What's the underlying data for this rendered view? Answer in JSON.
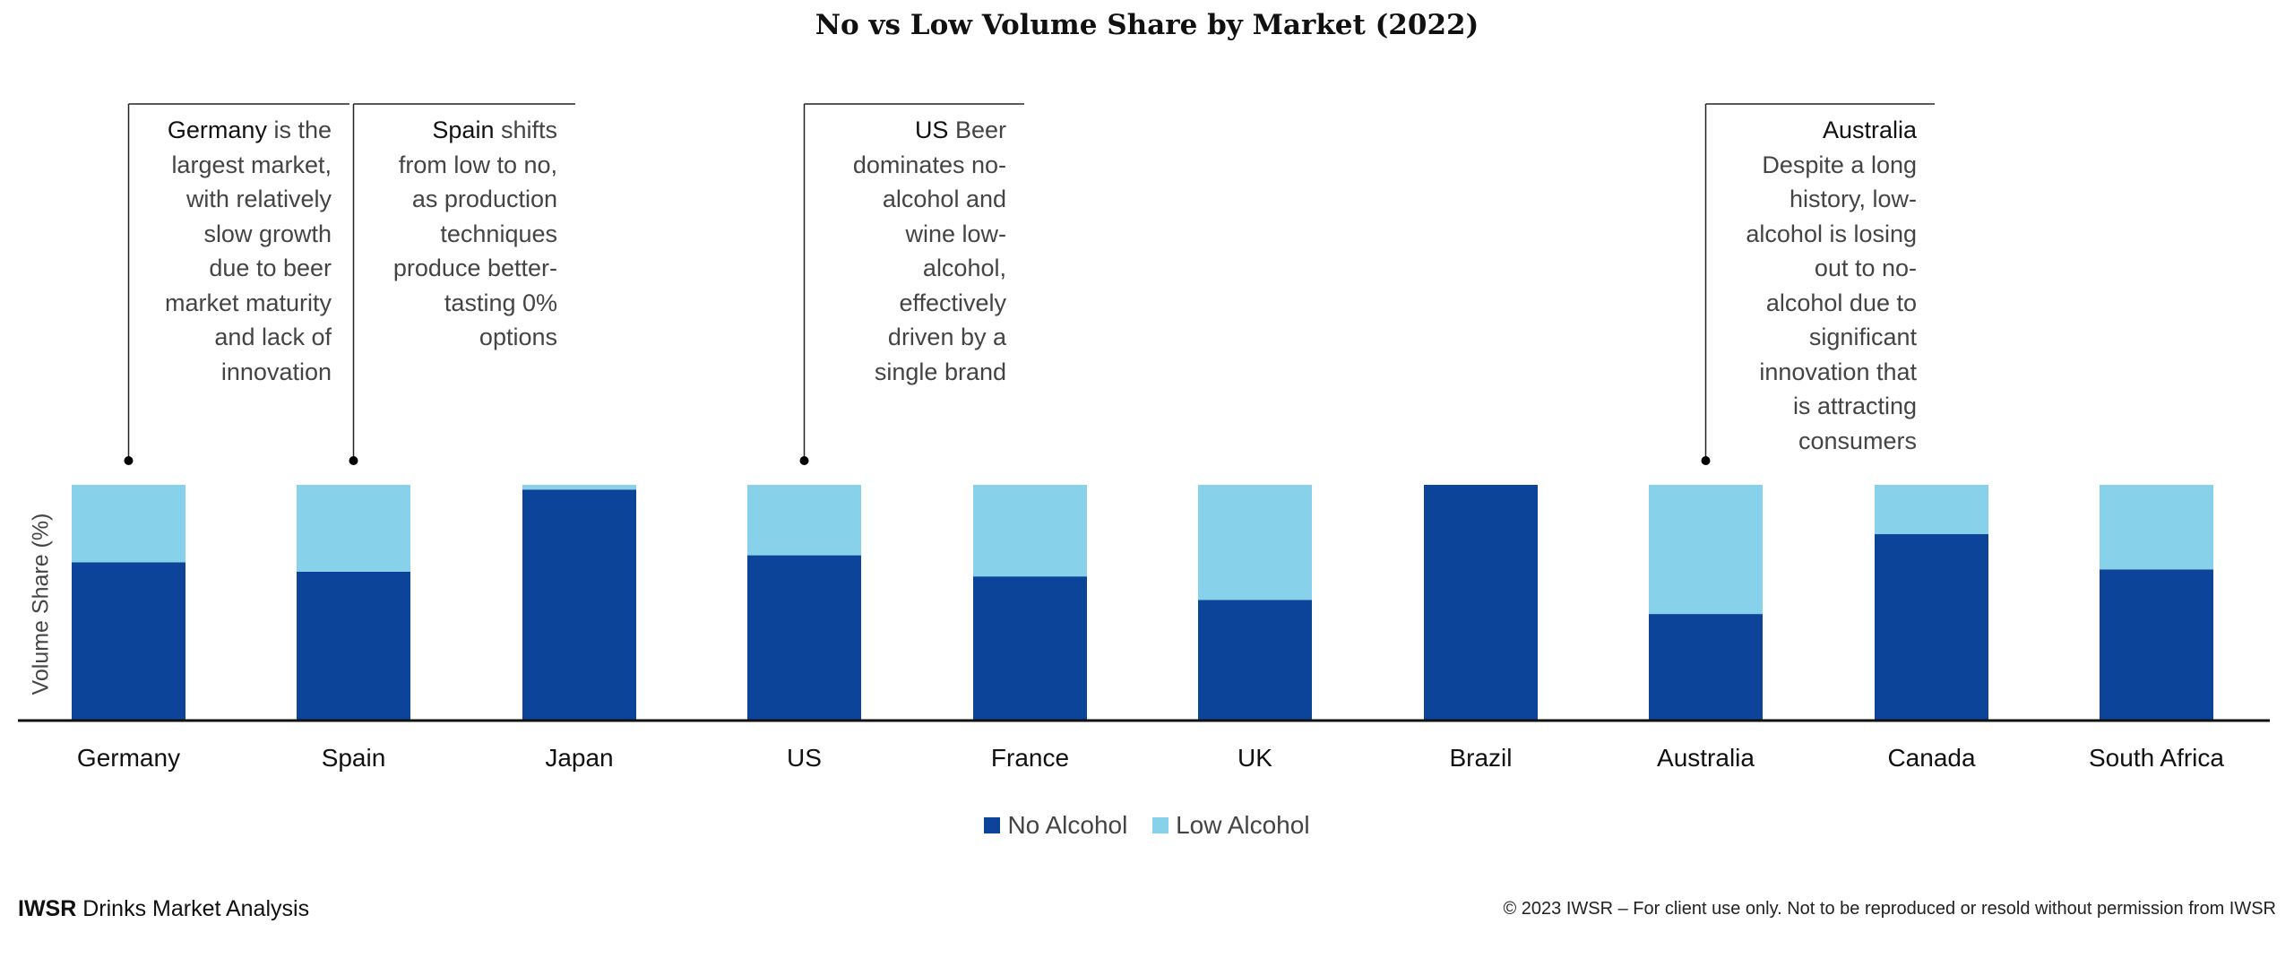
{
  "chart_data": {
    "type": "bar",
    "stacked": true,
    "title": "No vs Low Volume Share by Market (2022)",
    "xlabel": "",
    "ylabel": "Volume Share (%)",
    "ylim": [
      0,
      100
    ],
    "grid": false,
    "legend_position": "bottom-center",
    "categories": [
      "Germany",
      "Spain",
      "Japan",
      "US",
      "France",
      "UK",
      "Brazil",
      "Australia",
      "Canada",
      "South Africa"
    ],
    "series": [
      {
        "name": "No Alcohol",
        "color": "#0c4499",
        "values": [
          67,
          63,
          98,
          70,
          61,
          51,
          100,
          45,
          79,
          64
        ]
      },
      {
        "name": "Low Alcohol",
        "color": "#87d1eb",
        "values": [
          33,
          37,
          2,
          30,
          39,
          49,
          0,
          55,
          21,
          36
        ]
      }
    ],
    "annotations": [
      {
        "market": "Germany",
        "title": "Germany",
        "own_line": false,
        "lines": [
          " is the",
          "largest market,",
          "with relatively",
          "slow growth",
          "due to beer",
          "market maturity",
          "and lack of",
          "innovation"
        ]
      },
      {
        "market": "Spain",
        "title": "Spain",
        "own_line": false,
        "lines": [
          " shifts",
          "from low to no,",
          "as production",
          "techniques",
          "produce better-",
          "tasting 0%",
          "options"
        ]
      },
      {
        "market": "US",
        "title": "US",
        "own_line": false,
        "lines": [
          " Beer",
          "dominates no-",
          "alcohol and",
          "wine low-",
          "alcohol,",
          "effectively",
          "driven by a",
          "single brand"
        ]
      },
      {
        "market": "Australia",
        "title": "Australia",
        "own_line": true,
        "lines": [
          "Despite a long",
          "history, low-",
          "alcohol is losing",
          "out to no-",
          "alcohol due to",
          "significant",
          "innovation that",
          "is attracting",
          "consumers"
        ]
      }
    ]
  },
  "footer": {
    "brand": "IWSR",
    "brand_suffix": " Drinks Market Analysis",
    "copyright": "© 2023 IWSR – For client use only. Not to be reproduced or resold without permission from IWSR"
  }
}
